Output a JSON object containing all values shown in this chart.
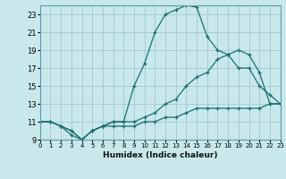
{
  "xlabel": "Humidex (Indice chaleur)",
  "xlim": [
    0,
    23
  ],
  "ylim": [
    9,
    24
  ],
  "xticks": [
    0,
    1,
    2,
    3,
    4,
    5,
    6,
    7,
    8,
    9,
    10,
    11,
    12,
    13,
    14,
    15,
    16,
    17,
    18,
    19,
    20,
    21,
    22,
    23
  ],
  "yticks": [
    9,
    11,
    13,
    15,
    17,
    19,
    21,
    23
  ],
  "bg_color": "#c8e8ec",
  "grid_color": "#a8ccd2",
  "line_color": "#1a7070",
  "lines": [
    {
      "x": [
        0,
        1,
        2,
        3,
        4,
        5,
        6,
        7,
        8,
        9,
        10,
        11,
        12,
        13,
        14,
        15,
        16,
        17,
        18,
        19,
        20,
        21,
        22,
        23
      ],
      "y": [
        11,
        11,
        10.5,
        9.5,
        9,
        10,
        10.5,
        11,
        11,
        15,
        17.5,
        21,
        23,
        23.5,
        24,
        23.8,
        20.5,
        19,
        18.5,
        19,
        18.5,
        16.5,
        13,
        13
      ]
    },
    {
      "x": [
        0,
        1,
        2,
        3,
        4,
        5,
        6,
        7,
        8,
        9,
        10,
        11,
        12,
        13,
        14,
        15,
        16,
        17,
        18,
        19,
        20,
        21,
        22,
        23
      ],
      "y": [
        11,
        11,
        10.5,
        10,
        9,
        10,
        10.5,
        11,
        11,
        11,
        11.5,
        12,
        13,
        13.5,
        15,
        16,
        16.5,
        18,
        18.5,
        17,
        17,
        15,
        14,
        13
      ]
    },
    {
      "x": [
        0,
        1,
        2,
        3,
        4,
        5,
        6,
        7,
        8,
        9,
        10,
        11,
        12,
        13,
        14,
        15,
        16,
        17,
        18,
        19,
        20,
        21,
        22,
        23
      ],
      "y": [
        11,
        11,
        10.5,
        10,
        9,
        10,
        10.5,
        10.5,
        10.5,
        10.5,
        11,
        11,
        11.5,
        11.5,
        12,
        12.5,
        12.5,
        12.5,
        12.5,
        12.5,
        12.5,
        12.5,
        13,
        13
      ]
    }
  ]
}
